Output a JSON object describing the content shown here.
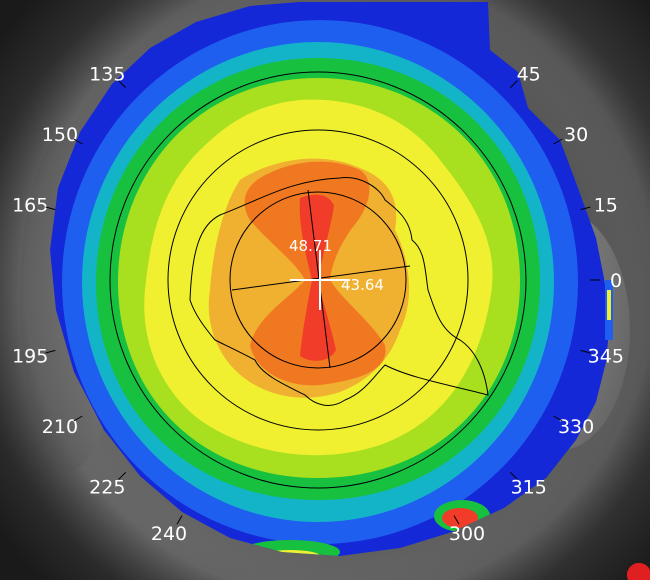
{
  "map": {
    "type": "corneal-topography-axial-map",
    "steep_k": "48.71",
    "flat_k": "43.64",
    "palette": {
      "outer": "#1428d8",
      "blue_light": "#1f5ff0",
      "cyan": "#14b4c8",
      "green": "#18c040",
      "lime": "#a8e020",
      "yellow": "#f0f030",
      "orange_light": "#f0b030",
      "orange": "#f07820",
      "red": "#f03c28",
      "overlay_line": "#000000",
      "label_text": "#ffffff"
    }
  },
  "meridian_labels": [
    {
      "deg": 0,
      "text": "0"
    },
    {
      "deg": 15,
      "text": "15"
    },
    {
      "deg": 30,
      "text": "30"
    },
    {
      "deg": 45,
      "text": "45"
    },
    {
      "deg": 135,
      "text": "135"
    },
    {
      "deg": 150,
      "text": "150"
    },
    {
      "deg": 165,
      "text": "165"
    },
    {
      "deg": 195,
      "text": "195"
    },
    {
      "deg": 210,
      "text": "210"
    },
    {
      "deg": 225,
      "text": "225"
    },
    {
      "deg": 240,
      "text": "240"
    },
    {
      "deg": 300,
      "text": "300"
    },
    {
      "deg": 315,
      "text": "315"
    },
    {
      "deg": 330,
      "text": "330"
    },
    {
      "deg": 345,
      "text": "345"
    }
  ]
}
